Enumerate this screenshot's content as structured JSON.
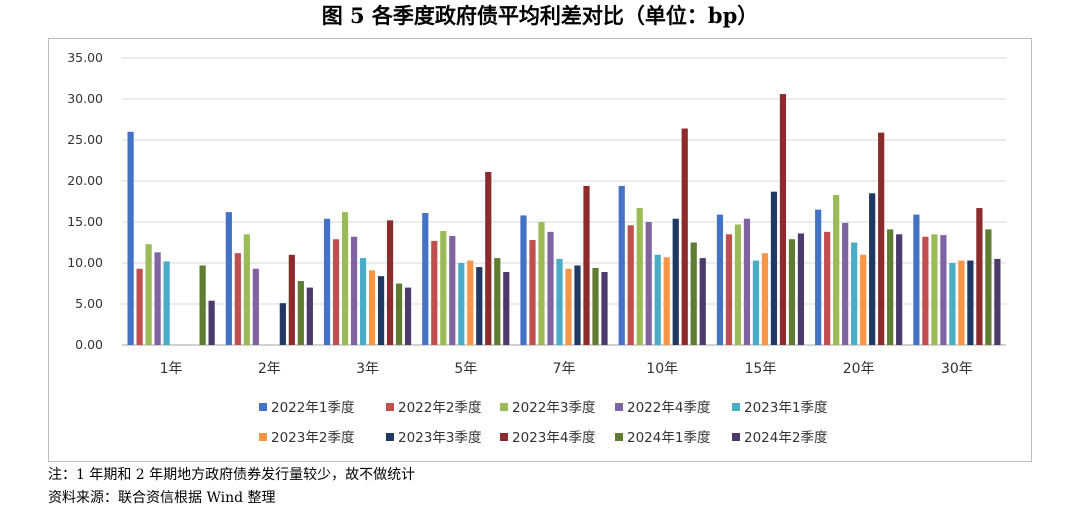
{
  "title": "图 5  各季度政府债平均利差对比（单位：bp）",
  "notes": {
    "note": "注：1 年期和 2 年期地方政府债券发行量较少，故不做统计",
    "source": "资料来源：联合资信根据 Wind 整理"
  },
  "chart_data": {
    "type": "bar",
    "title": "各季度政府债平均利差对比（单位：bp）",
    "categories": [
      "1年",
      "2年",
      "3年",
      "5年",
      "7年",
      "10年",
      "15年",
      "20年",
      "30年"
    ],
    "y_ticks": [
      "0.00",
      "5.00",
      "10.00",
      "15.00",
      "20.00",
      "25.00",
      "30.00",
      "35.00"
    ],
    "ylim": [
      0,
      35
    ],
    "grid": true,
    "legend_position": "bottom",
    "series": [
      {
        "name": "2022年1季度",
        "color": "#4472c4",
        "values": [
          26.0,
          16.2,
          15.4,
          16.1,
          15.8,
          19.4,
          15.9,
          16.5,
          15.9
        ]
      },
      {
        "name": "2022年2季度",
        "color": "#c0504d",
        "values": [
          9.3,
          11.2,
          12.9,
          12.7,
          12.8,
          14.6,
          13.5,
          13.8,
          13.2
        ]
      },
      {
        "name": "2022年3季度",
        "color": "#9bbb59",
        "values": [
          12.3,
          13.5,
          16.2,
          13.9,
          15.0,
          16.7,
          14.7,
          18.3,
          13.5
        ]
      },
      {
        "name": "2022年4季度",
        "color": "#8064a2",
        "values": [
          11.3,
          9.3,
          13.2,
          13.3,
          13.8,
          15.0,
          15.4,
          14.9,
          13.4
        ]
      },
      {
        "name": "2023年1季度",
        "color": "#4bacc6",
        "values": [
          10.2,
          null,
          10.6,
          10.0,
          10.5,
          11.0,
          10.3,
          12.5,
          10.0
        ]
      },
      {
        "name": "2023年2季度",
        "color": "#f79646",
        "values": [
          null,
          null,
          9.1,
          10.3,
          9.3,
          10.7,
          11.2,
          11.0,
          10.3
        ]
      },
      {
        "name": "2023年3季度",
        "color": "#1f3864",
        "values": [
          null,
          5.1,
          8.4,
          9.5,
          9.7,
          15.4,
          18.7,
          18.5,
          10.3
        ]
      },
      {
        "name": "2023年4季度",
        "color": "#8b2b2b",
        "values": [
          null,
          11.0,
          15.2,
          21.1,
          19.4,
          26.4,
          30.6,
          25.9,
          16.7
        ]
      },
      {
        "name": "2024年1季度",
        "color": "#5e7d31",
        "values": [
          9.7,
          7.8,
          7.5,
          10.6,
          9.4,
          12.5,
          12.9,
          14.1,
          14.1
        ]
      },
      {
        "name": "2024年2季度",
        "color": "#4b3a6b",
        "values": [
          5.4,
          7.0,
          7.0,
          8.9,
          8.9,
          10.6,
          13.6,
          13.5,
          10.5
        ]
      }
    ]
  }
}
